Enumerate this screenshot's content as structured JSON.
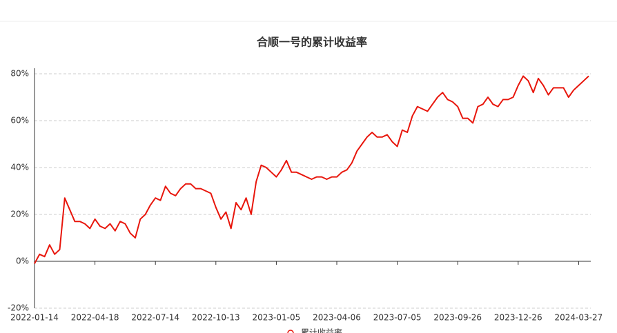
{
  "chart_data": {
    "type": "line",
    "title": "合顺一号的累计收益率",
    "categories": [
      "2022-01-14",
      null,
      null,
      null,
      null,
      null,
      null,
      null,
      null,
      null,
      null,
      null,
      "2022-04-18",
      null,
      null,
      null,
      null,
      null,
      null,
      null,
      null,
      null,
      null,
      null,
      "2022-07-14",
      null,
      null,
      null,
      null,
      null,
      null,
      null,
      null,
      null,
      null,
      null,
      "2022-10-13",
      null,
      null,
      null,
      null,
      null,
      null,
      null,
      null,
      null,
      null,
      null,
      "2023-01-05",
      null,
      null,
      null,
      null,
      null,
      null,
      null,
      null,
      null,
      null,
      null,
      "2023-04-06",
      null,
      null,
      null,
      null,
      null,
      null,
      null,
      null,
      null,
      null,
      null,
      "2023-07-05",
      null,
      null,
      null,
      null,
      null,
      null,
      null,
      null,
      null,
      null,
      null,
      "2023-09-26",
      null,
      null,
      null,
      null,
      null,
      null,
      null,
      null,
      null,
      null,
      null,
      "2023-12-26",
      null,
      null,
      null,
      null,
      null,
      null,
      null,
      null,
      null,
      null,
      null,
      "2024-03-27",
      null,
      null
    ],
    "series": [
      {
        "name": "累计收益率",
        "color": "#e8160c",
        "values": [
          -1,
          3,
          2,
          7,
          3,
          5,
          27,
          22,
          17,
          17,
          16,
          14,
          18,
          15,
          14,
          16,
          13,
          17,
          16,
          12,
          10,
          18,
          20,
          24,
          27,
          26,
          32,
          29,
          28,
          31,
          33,
          33,
          31,
          31,
          30,
          29,
          23,
          18,
          21,
          14,
          25,
          22,
          27,
          20,
          34,
          41,
          40,
          38,
          36,
          39,
          43,
          38,
          38,
          37,
          36,
          35,
          36,
          36,
          35,
          36,
          36,
          38,
          39,
          42,
          47,
          50,
          53,
          55,
          53,
          53,
          54,
          51,
          49,
          56,
          55,
          62,
          66,
          65,
          64,
          67,
          70,
          72,
          69,
          68,
          66,
          61,
          61,
          59,
          66,
          67,
          70,
          67,
          66,
          69,
          69,
          70,
          75,
          79,
          77,
          72,
          78,
          75,
          71,
          74,
          74,
          74,
          70,
          73,
          75,
          77,
          79
        ]
      }
    ],
    "ylim": [
      -20,
      80
    ],
    "yticks": [
      {
        "value": -20,
        "label": "-20%"
      },
      {
        "value": 0,
        "label": "0%"
      },
      {
        "value": 20,
        "label": "20%"
      },
      {
        "value": 40,
        "label": "40%"
      },
      {
        "value": 60,
        "label": "60%"
      },
      {
        "value": 80,
        "label": "80%"
      }
    ],
    "grid": true
  }
}
